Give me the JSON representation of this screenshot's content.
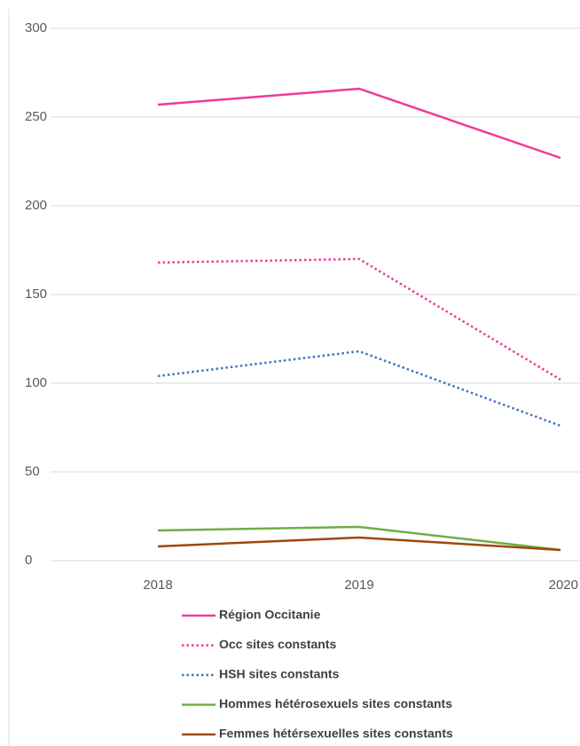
{
  "chart_data": {
    "type": "line",
    "categories": [
      "2018",
      "2019",
      "2020"
    ],
    "series": [
      {
        "name": "Région Occitanie",
        "color": "#f0399a",
        "style": "solid",
        "values": [
          257,
          266,
          227
        ]
      },
      {
        "name": "Occ sites constants",
        "color": "#f0399a",
        "style": "dotted",
        "values": [
          168,
          170,
          102
        ]
      },
      {
        "name": "HSH sites constants",
        "color": "#4472c4",
        "style": "dotted",
        "values": [
          104,
          118,
          76
        ]
      },
      {
        "name": "Hommes hétérosexuels sites constants",
        "color": "#70ad47",
        "style": "solid",
        "values": [
          17,
          19,
          6
        ]
      },
      {
        "name": "Femmes hétérsexuelles sites constants",
        "color": "#9e480e",
        "style": "solid",
        "values": [
          8,
          13,
          6
        ]
      }
    ],
    "ylim": [
      0,
      300
    ],
    "yticks": [
      0,
      50,
      100,
      150,
      200,
      250,
      300
    ],
    "grid": true,
    "legend": "bottom"
  }
}
